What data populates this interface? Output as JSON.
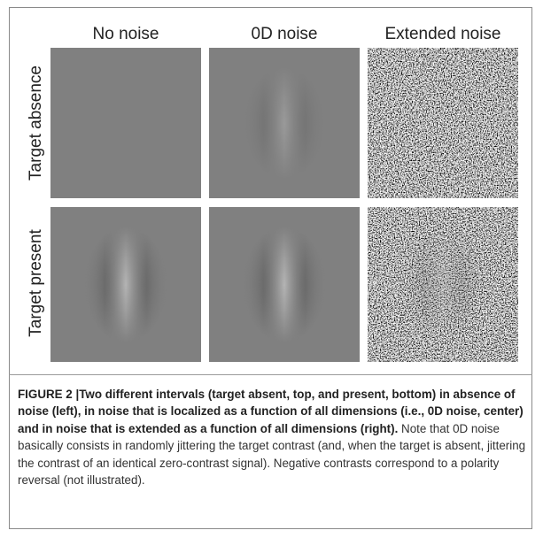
{
  "figure": {
    "column_headers": [
      "No noise",
      "0D noise",
      "Extended noise"
    ],
    "row_labels": [
      "Target absence",
      "Target present"
    ]
  },
  "caption": {
    "label": "FIGURE 2 |",
    "bold": "Two different intervals (target absent, top, and present, bottom) in absence of noise (left), in noise that is localized as a function of all dimensions (i.e., 0D noise, center) and in noise that is extended as a function of all dimensions (right).",
    "text": "Note that 0D noise basically consists in randomly jittering the target contrast (and, when the target is absent, jittering the contrast of an identical zero-contrast signal). Negative contrasts correspond to a polarity reversal (not illustrated)."
  }
}
